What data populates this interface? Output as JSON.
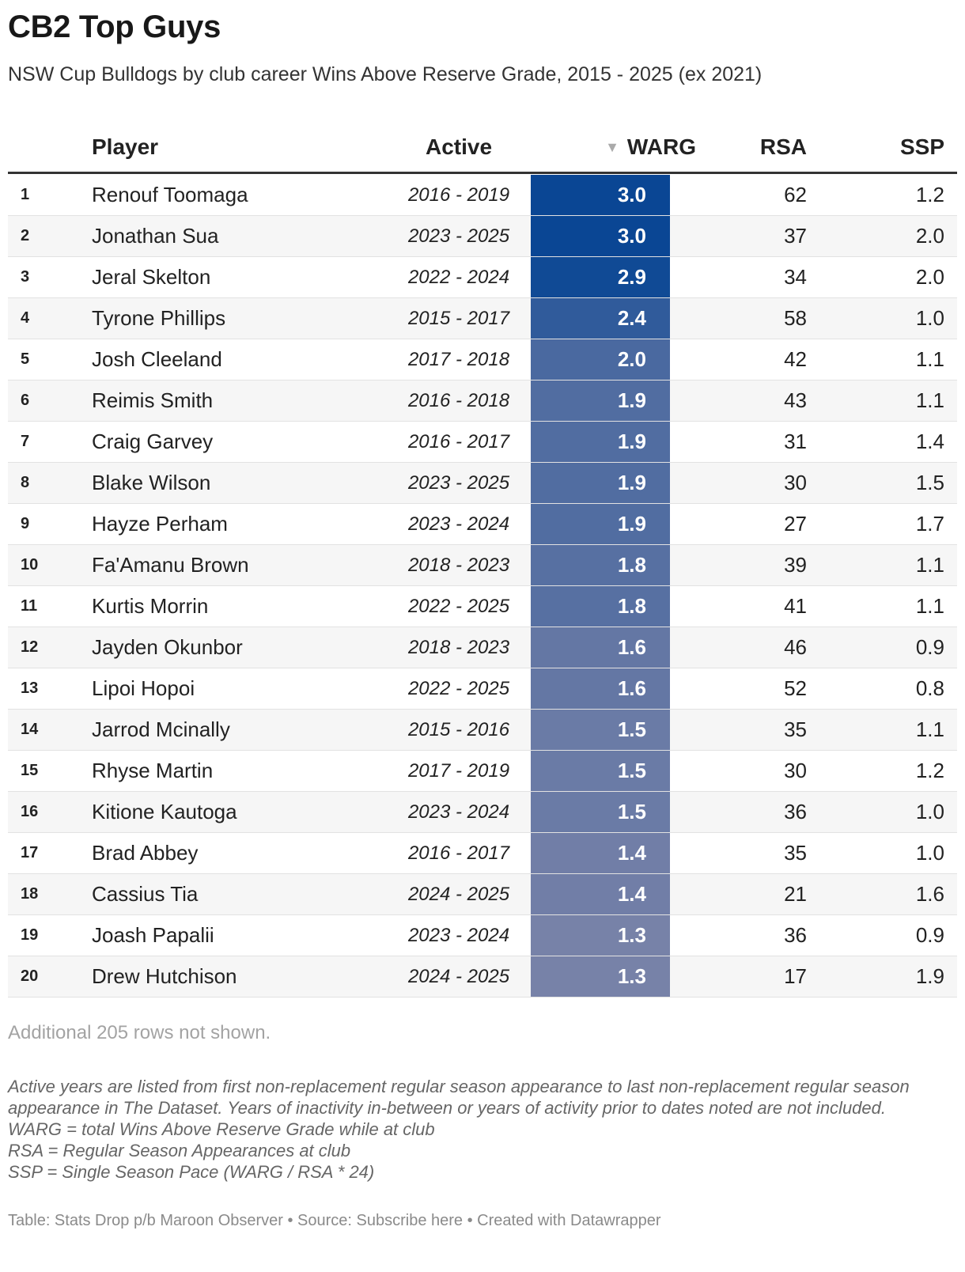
{
  "header": {
    "title": "CB2 Top Guys",
    "subtitle": "NSW Cup Bulldogs by club career Wins Above Reserve Grade, 2015 - 2025 (ex 2021)"
  },
  "chart_data": {
    "type": "table",
    "columns": [
      "",
      "Player",
      "Active",
      "WARG",
      "RSA",
      "SSP"
    ],
    "sort_column": "WARG",
    "sort_order": "descending",
    "warg_color_scale": {
      "high": "#0a4694",
      "low": "#7782a8",
      "max": 3.0,
      "min": 1.3
    },
    "rows": [
      {
        "rank": "1",
        "player": "Renouf Toomaga",
        "active": "2016 - 2019",
        "warg": 3.0,
        "rsa": 62,
        "ssp": 1.2
      },
      {
        "rank": "2",
        "player": "Jonathan Sua",
        "active": "2023 - 2025",
        "warg": 3.0,
        "rsa": 37,
        "ssp": 2.0
      },
      {
        "rank": "3",
        "player": "Jeral Skelton",
        "active": "2022 - 2024",
        "warg": 2.9,
        "rsa": 34,
        "ssp": 2.0
      },
      {
        "rank": "4",
        "player": "Tyrone Phillips",
        "active": "2015 - 2017",
        "warg": 2.4,
        "rsa": 58,
        "ssp": 1.0
      },
      {
        "rank": "5",
        "player": "Josh Cleeland",
        "active": "2017 - 2018",
        "warg": 2.0,
        "rsa": 42,
        "ssp": 1.1
      },
      {
        "rank": "6",
        "player": "Reimis Smith",
        "active": "2016 - 2018",
        "warg": 1.9,
        "rsa": 43,
        "ssp": 1.1
      },
      {
        "rank": "7",
        "player": "Craig Garvey",
        "active": "2016 - 2017",
        "warg": 1.9,
        "rsa": 31,
        "ssp": 1.4
      },
      {
        "rank": "8",
        "player": "Blake Wilson",
        "active": "2023 - 2025",
        "warg": 1.9,
        "rsa": 30,
        "ssp": 1.5
      },
      {
        "rank": "9",
        "player": "Hayze Perham",
        "active": "2023 - 2024",
        "warg": 1.9,
        "rsa": 27,
        "ssp": 1.7
      },
      {
        "rank": "10",
        "player": "Fa'Amanu Brown",
        "active": "2018 - 2023",
        "warg": 1.8,
        "rsa": 39,
        "ssp": 1.1
      },
      {
        "rank": "11",
        "player": "Kurtis Morrin",
        "active": "2022 - 2025",
        "warg": 1.8,
        "rsa": 41,
        "ssp": 1.1
      },
      {
        "rank": "12",
        "player": "Jayden Okunbor",
        "active": "2018 - 2023",
        "warg": 1.6,
        "rsa": 46,
        "ssp": 0.9
      },
      {
        "rank": "13",
        "player": "Lipoi Hopoi",
        "active": "2022 - 2025",
        "warg": 1.6,
        "rsa": 52,
        "ssp": 0.8
      },
      {
        "rank": "14",
        "player": "Jarrod Mcinally",
        "active": "2015 - 2016",
        "warg": 1.5,
        "rsa": 35,
        "ssp": 1.1
      },
      {
        "rank": "15",
        "player": "Rhyse Martin",
        "active": "2017 - 2019",
        "warg": 1.5,
        "rsa": 30,
        "ssp": 1.2
      },
      {
        "rank": "16",
        "player": "Kitione Kautoga",
        "active": "2023 - 2024",
        "warg": 1.5,
        "rsa": 36,
        "ssp": 1.0
      },
      {
        "rank": "17",
        "player": "Brad Abbey",
        "active": "2016 - 2017",
        "warg": 1.4,
        "rsa": 35,
        "ssp": 1.0
      },
      {
        "rank": "18",
        "player": "Cassius Tia",
        "active": "2024 - 2025",
        "warg": 1.4,
        "rsa": 21,
        "ssp": 1.6
      },
      {
        "rank": "19",
        "player": "Joash Papalii",
        "active": "2023 - 2024",
        "warg": 1.3,
        "rsa": 36,
        "ssp": 0.9
      },
      {
        "rank": "20",
        "player": "Drew Hutchison",
        "active": "2024 - 2025",
        "warg": 1.3,
        "rsa": 17,
        "ssp": 1.9
      }
    ]
  },
  "table": {
    "not_shown": "Additional 205 rows not shown."
  },
  "notes": [
    "Active years are listed from first non-replacement regular season appearance to last non-replacement regular season appearance in The Dataset. Years of inactivity in-between or years of activity prior to dates noted are not included.",
    "WARG = total Wins Above Reserve Grade while at club",
    "RSA = Regular Season Appearances at club",
    "SSP = Single Season Pace (WARG / RSA * 24)"
  ],
  "footer": "Table: Stats Drop p/b Maroon Observer • Source: Subscribe here • Created with Datawrapper"
}
